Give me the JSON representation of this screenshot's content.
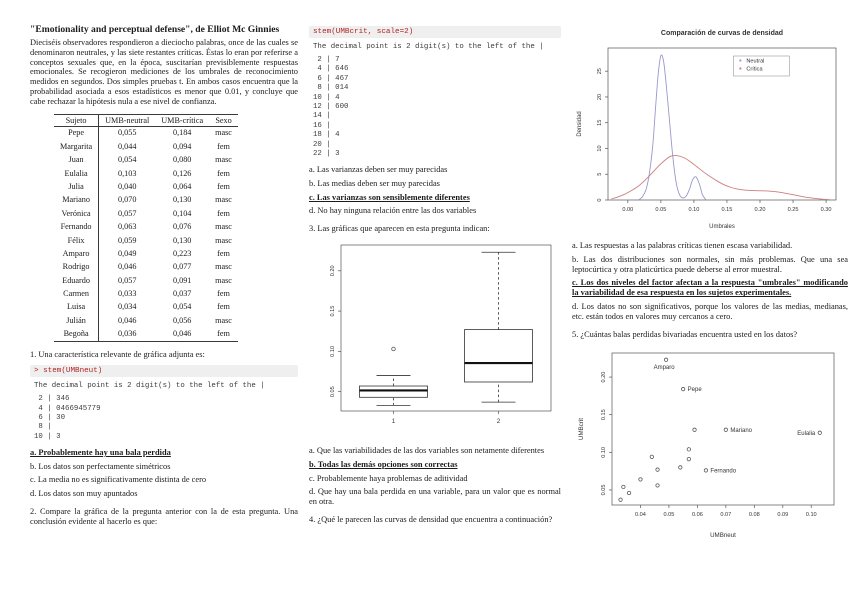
{
  "colors": {
    "code_red": "#b22222",
    "axis": "#555555",
    "neutral_line": "#9898cb",
    "critica_line": "#cd7e7e"
  },
  "left": {
    "title": "\"Emotionality and perceptual defense\", de Elliot Mc Ginnies",
    "intro": "Dieciséis observadores respondieron a dieciocho palabras, once de las cuales se denominaron neutrales, y las siete restantes críticas. Éstas lo eran por referirse a conceptos sexuales que, en la época, suscitarían previsiblemente respuestas emocionales. Se recogieron mediciones de los umbrales de reconocimiento medidos en segundos. Dos simples pruebas t. En ambos casos encuentra que la probabilidad asociada a esos estadísticos es menor que 0.01, y concluye que cabe rechazar la hipótesis nula a ese nivel de confianza.",
    "table": {
      "headers": [
        "Sujeto",
        "UMB-neutral",
        "UMB-crítica",
        "Sexo"
      ],
      "rows": [
        [
          "Pepe",
          "0,055",
          "0,184",
          "masc"
        ],
        [
          "Margarita",
          "0,044",
          "0,094",
          "fem"
        ],
        [
          "Juan",
          "0,054",
          "0,080",
          "masc"
        ],
        [
          "Eulalia",
          "0,103",
          "0,126",
          "fem"
        ],
        [
          "Julia",
          "0,040",
          "0,064",
          "fem"
        ],
        [
          "Mariano",
          "0,070",
          "0,130",
          "masc"
        ],
        [
          "Verónica",
          "0,057",
          "0,104",
          "fem"
        ],
        [
          "Fernando",
          "0,063",
          "0,076",
          "masc"
        ],
        [
          "Félix",
          "0,059",
          "0,130",
          "masc"
        ],
        [
          "Amparo",
          "0,049",
          "0,223",
          "fem"
        ],
        [
          "Rodrigo",
          "0,046",
          "0,077",
          "masc"
        ],
        [
          "Eduardo",
          "0,057",
          "0,091",
          "masc"
        ],
        [
          "Carmen",
          "0,033",
          "0,037",
          "fem"
        ],
        [
          "Luisa",
          "0,034",
          "0,054",
          "fem"
        ],
        [
          "Julián",
          "0,046",
          "0,056",
          "masc"
        ],
        [
          "Begoña",
          "0,036",
          "0,046",
          "fem"
        ]
      ]
    },
    "q1": "1. Una característica relevante de gráfica adjunta es:",
    "stem1": {
      "code": "> stem(UMBneut)",
      "caption": "The decimal point is 2 digit(s) to the left of the |",
      "lines": [
        " 2 | 346",
        " 4 | 0466945779",
        " 6 | 30",
        " 8 | ",
        "10 | 3"
      ]
    },
    "q1_options": [
      {
        "text": "a. Probablemente hay una bala perdida",
        "correct": true
      },
      {
        "text": "b. Los datos son perfectamente simétricos",
        "correct": false
      },
      {
        "text": "c. La media no es significativamente distinta de cero",
        "correct": false
      },
      {
        "text": "d. Los datos son muy apuntados",
        "correct": false
      }
    ],
    "q2": "2. Compare la gráfica de la pregunta anterior con la de esta pregunta. Una conclusión evidente al hacerlo es que:"
  },
  "middle": {
    "stem2": {
      "code": "stem(UMBcrit, scale=2)",
      "caption": "The decimal point is 2 digit(s) to the left of the |",
      "lines": [
        " 2 | 7",
        " 4 | 646",
        " 6 | 467",
        " 8 | 014",
        "10 | 4",
        "12 | 600",
        "14 | ",
        "16 | ",
        "18 | 4",
        "20 | ",
        "22 | 3"
      ]
    },
    "q2_options": [
      {
        "text": "a. Las varianzas deben ser muy parecidas",
        "correct": false
      },
      {
        "text": "b. Las medias deben ser muy parecidas",
        "correct": false
      },
      {
        "text": "c. Las varianzas son sensiblemente diferentes",
        "correct": true
      },
      {
        "text": "d. No hay ninguna relación entre las dos variables",
        "correct": false
      }
    ],
    "q3": "3. Las gráficas que aparecen en esta pregunta indican:",
    "q3_options": [
      {
        "text": "a. Que las variabilidades de las dos variables son netamente diferentes",
        "correct": false
      },
      {
        "text": "b. Todas las demás opciones son correctas",
        "correct": true
      },
      {
        "text": "c. Probablemente haya problemas de aditividad",
        "correct": false
      },
      {
        "text": "d. Que hay una bala perdida en una variable, para un valor que es normal en otra.",
        "correct": false
      }
    ],
    "q4": "4. ¿Qué le parecen las curvas de densidad que encuentra a continuación?"
  },
  "right": {
    "q4_options": [
      {
        "text": "a. Las respuestas a las palabras críticas tienen escasa variabilidad.",
        "correct": false
      },
      {
        "text": "b. Las dos distribuciones son normales, sin más problemas. Que una sea leptocúrtica y otra platicúrtica puede deberse al error muestral.",
        "correct": false
      },
      {
        "text": "c. Los dos niveles del factor afectan a la respuesta \"umbrales\" modificando la variabilidad de esa respuesta en los sujetos experimentales.",
        "correct": true
      },
      {
        "text": "d. Los datos no son significativos, porque los valores de las medias, medianas, etc. están todos en valores muy cercanos a cero.",
        "correct": false
      }
    ],
    "q5": "5. ¿Cuántas balas perdidas bivariadas encuentra usted en los datos?"
  },
  "chart_data": [
    {
      "type": "line",
      "title": "Comparación de curvas de densidad",
      "xlabel": "Umbrales",
      "ylabel": "Densidad",
      "xlim": [
        -0.03,
        0.315
      ],
      "ylim": [
        0,
        29.5
      ],
      "xticks": [
        0.0,
        0.05,
        0.1,
        0.15,
        0.2,
        0.25,
        0.3
      ],
      "yticks": [
        0,
        5,
        10,
        15,
        20,
        25
      ],
      "legend_position": "top-center-right",
      "series": [
        {
          "name": "Neutral",
          "color": "#9898cb",
          "x": [
            0.016,
            0.022,
            0.028,
            0.033,
            0.038,
            0.042,
            0.046,
            0.05,
            0.054,
            0.058,
            0.063,
            0.068,
            0.073,
            0.078,
            0.083,
            0.088,
            0.093,
            0.098,
            0.103,
            0.108,
            0.113,
            0.118
          ],
          "y": [
            0,
            0.6,
            2.2,
            5.5,
            11,
            18,
            24.5,
            28,
            27,
            22.5,
            15.5,
            8.5,
            3.5,
            1.1,
            0.4,
            0.7,
            2.0,
            3.9,
            4.5,
            3.2,
            1.0,
            0.1
          ]
        },
        {
          "name": "Crítica",
          "color": "#cd7e7e",
          "x": [
            -0.025,
            -0.015,
            -0.005,
            0.005,
            0.015,
            0.025,
            0.035,
            0.045,
            0.055,
            0.065,
            0.075,
            0.085,
            0.095,
            0.105,
            0.115,
            0.125,
            0.135,
            0.145,
            0.155,
            0.165,
            0.175,
            0.185,
            0.195,
            0.205,
            0.215,
            0.225,
            0.235,
            0.245,
            0.255,
            0.265,
            0.275,
            0.285,
            0.295,
            0.305
          ],
          "y": [
            0.2,
            0.6,
            1.1,
            1.8,
            2.6,
            3.7,
            5.0,
            6.4,
            7.6,
            8.5,
            8.6,
            8.2,
            7.4,
            6.4,
            5.4,
            4.5,
            3.7,
            3.0,
            2.5,
            2.15,
            1.95,
            1.85,
            1.8,
            1.78,
            1.72,
            1.6,
            1.4,
            1.15,
            0.9,
            0.65,
            0.45,
            0.28,
            0.15,
            0.07
          ]
        }
      ]
    },
    {
      "type": "boxplot",
      "categories": [
        "1",
        "2"
      ],
      "ylim": [
        0.026,
        0.232
      ],
      "yticks": [
        0.05,
        0.1,
        0.15,
        0.2
      ],
      "series": [
        {
          "name": "1",
          "min": 0.033,
          "q1": 0.043,
          "median": 0.0515,
          "q3": 0.057,
          "max": 0.07,
          "outliers": [
            0.103
          ]
        },
        {
          "name": "2",
          "min": 0.037,
          "q1": 0.062,
          "median": 0.0855,
          "q3": 0.127,
          "max": 0.223,
          "outliers": []
        }
      ]
    },
    {
      "type": "scatter",
      "xlabel": "UMBneut",
      "ylabel": "UMBcrit",
      "xlim": [
        0.03,
        0.108
      ],
      "ylim": [
        0.03,
        0.232
      ],
      "xticks": [
        0.04,
        0.05,
        0.06,
        0.07,
        0.08,
        0.09,
        0.1
      ],
      "yticks": [
        0.05,
        0.1,
        0.15,
        0.2
      ],
      "points": [
        {
          "x": 0.033,
          "y": 0.037
        },
        {
          "x": 0.034,
          "y": 0.054
        },
        {
          "x": 0.036,
          "y": 0.046
        },
        {
          "x": 0.04,
          "y": 0.064
        },
        {
          "x": 0.044,
          "y": 0.094
        },
        {
          "x": 0.046,
          "y": 0.077
        },
        {
          "x": 0.046,
          "y": 0.056
        },
        {
          "name": "Amparo",
          "label": "below",
          "x": 0.049,
          "y": 0.223
        },
        {
          "x": 0.054,
          "y": 0.08
        },
        {
          "name": "Pepe",
          "label": "right",
          "x": 0.055,
          "y": 0.184
        },
        {
          "x": 0.057,
          "y": 0.104
        },
        {
          "x": 0.057,
          "y": 0.091
        },
        {
          "x": 0.059,
          "y": 0.13
        },
        {
          "name": "Fernando",
          "label": "right",
          "x": 0.063,
          "y": 0.076
        },
        {
          "name": "Mariano",
          "label": "right",
          "x": 0.07,
          "y": 0.13
        },
        {
          "name": "Eulalia",
          "label": "left",
          "x": 0.103,
          "y": 0.126
        }
      ]
    }
  ]
}
